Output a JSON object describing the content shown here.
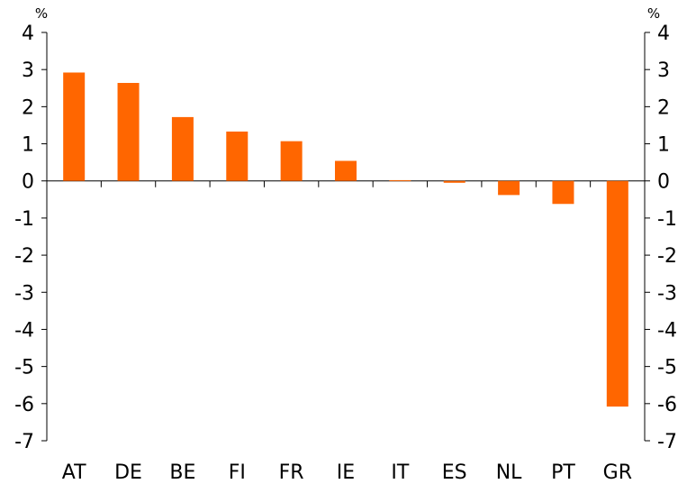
{
  "chart_data": {
    "type": "bar",
    "categories": [
      "AT",
      "DE",
      "BE",
      "FI",
      "FR",
      "IE",
      "IT",
      "ES",
      "NL",
      "PT",
      "GR"
    ],
    "values": [
      2.92,
      2.64,
      1.72,
      1.33,
      1.07,
      0.54,
      0.02,
      -0.05,
      -0.38,
      -0.62,
      -6.08
    ],
    "ylim": [
      -7,
      4
    ],
    "yticks": [
      4,
      3,
      2,
      1,
      0,
      -1,
      -2,
      -3,
      -4,
      -5,
      -6,
      -7
    ],
    "y_unit_left": "%",
    "y_unit_right": "%",
    "bar_color": "#ff6600",
    "grid": false,
    "legend": "none"
  }
}
